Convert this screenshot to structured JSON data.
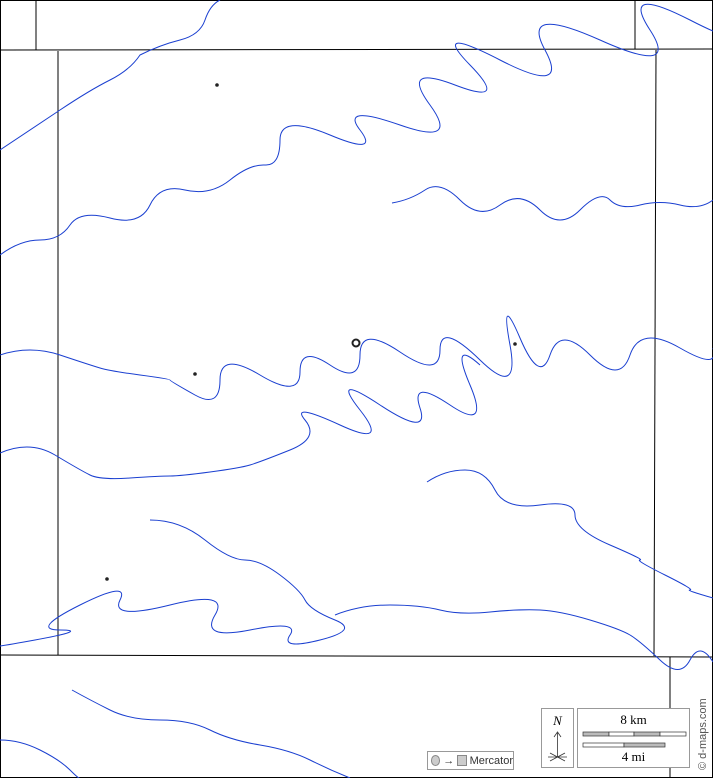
{
  "map": {
    "projection_label": "Mercator",
    "north_label": "N",
    "scale": {
      "km_label": "8 km",
      "mi_label": "4 mi"
    },
    "watermark": "© d-maps.com",
    "colors": {
      "river": "#1a3fd0",
      "border": "#000000",
      "background": "#ffffff"
    },
    "places": [
      {
        "type": "town",
        "symbol": "dot"
      },
      {
        "type": "town",
        "symbol": "dot"
      },
      {
        "type": "town",
        "symbol": "dot"
      },
      {
        "type": "town",
        "symbol": "dot"
      },
      {
        "type": "county-seat",
        "symbol": "ring"
      }
    ]
  }
}
